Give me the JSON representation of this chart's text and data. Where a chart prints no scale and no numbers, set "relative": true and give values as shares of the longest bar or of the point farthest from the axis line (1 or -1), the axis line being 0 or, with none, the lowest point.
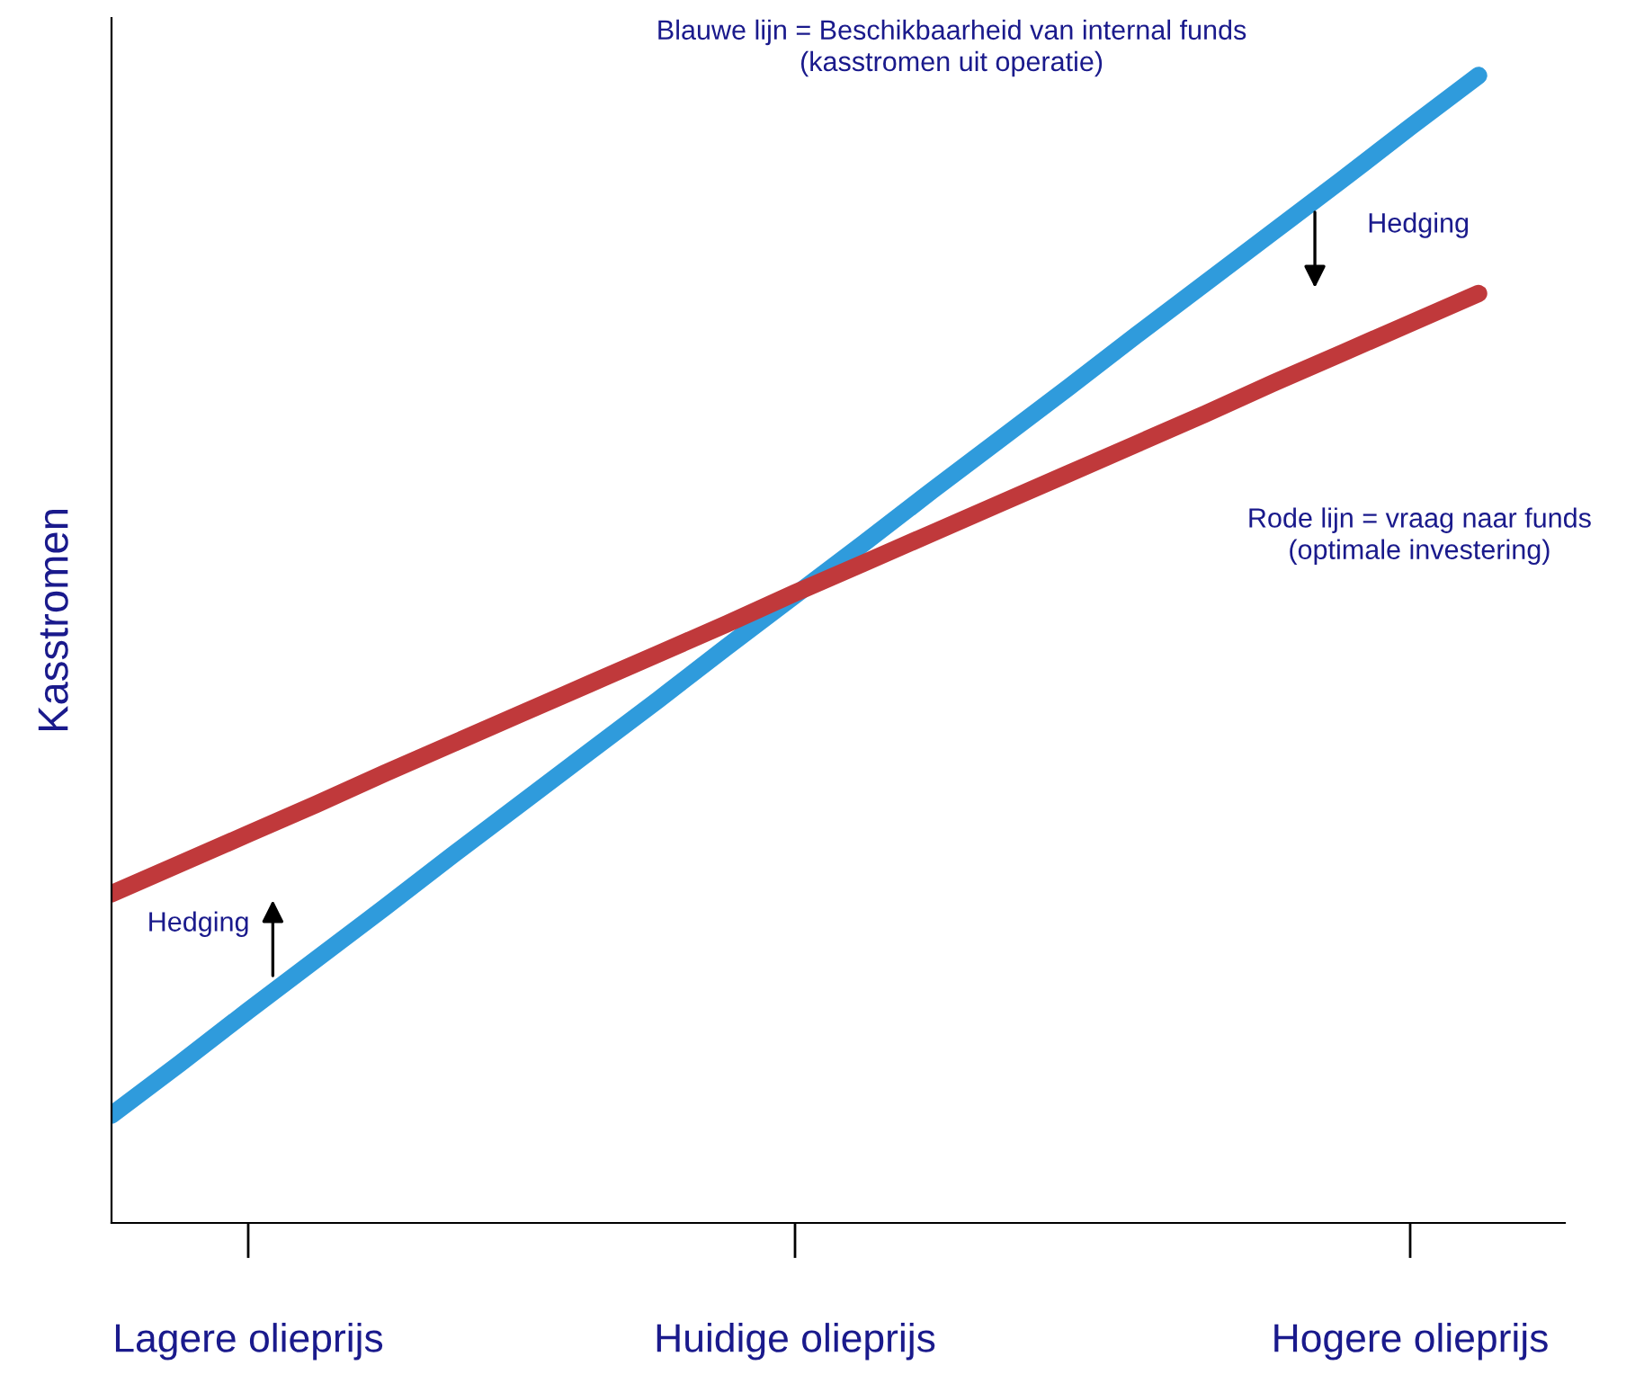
{
  "chart_data": {
    "type": "line",
    "relative": true,
    "ylabel": "Kasstromen",
    "categories": [
      null,
      null,
      "Lagere olieprijs",
      null,
      null,
      null,
      null,
      null,
      null,
      null,
      "Huidige olieprijs",
      null,
      null,
      null,
      null,
      null,
      null,
      null,
      null,
      "Hogere olieprijs",
      null
    ],
    "series": [
      {
        "color": "#2f9bdc",
        "values": [
          0.094,
          0.139,
          0.185,
          0.23,
          0.275,
          0.321,
          0.366,
          0.411,
          0.456,
          0.502,
          0.547,
          0.592,
          0.638,
          0.683,
          0.728,
          0.774,
          0.819,
          0.864,
          0.909,
          0.955,
          1
        ]
      },
      {
        "color": "#c0393b",
        "values": [
          0.287,
          0.313,
          0.339,
          0.365,
          0.392,
          0.418,
          0.444,
          0.47,
          0.496,
          0.522,
          0.549,
          0.575,
          0.601,
          0.627,
          0.653,
          0.679,
          0.705,
          0.732,
          0.758,
          0.784,
          0.81
        ]
      }
    ],
    "annotations": [
      "Blauwe lijn = Beschikbaarheid van internal funds\n(kasstromen uit operatie)",
      "Rode lijn = vraag naar funds\n(optimale investering)",
      "Hedging",
      "Hedging"
    ],
    "grid": false,
    "legend": false,
    "marker": "none",
    "line_style": "solid"
  }
}
